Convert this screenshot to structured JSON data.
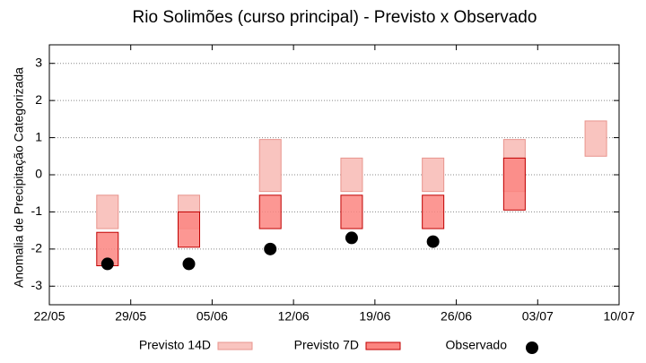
{
  "chart_data": {
    "type": "range",
    "title": "Rio Solimões (curso principal) - Previsto x Observado",
    "y_label": "Anomalia de Precipitação Categorizada",
    "x": [
      "27/05",
      "03/06",
      "10/06",
      "17/06",
      "24/06",
      "01/07",
      "08/07"
    ],
    "xlim": [
      "22/05",
      "10/07"
    ],
    "xticks": [
      "22/05",
      "29/05",
      "05/06",
      "12/06",
      "19/06",
      "26/06",
      "03/07",
      "10/07"
    ],
    "ylim": [
      -3.5,
      3.5
    ],
    "yticks": [
      -3,
      -2,
      -1,
      0,
      1,
      2,
      3
    ],
    "grid": true,
    "legend": "bottom",
    "series": [
      {
        "name": "Previsto 14D",
        "type": "range",
        "color": "#f9c4bf",
        "stroke": "#e8948d",
        "low": [
          -1.45,
          -1.45,
          -0.45,
          -0.45,
          -0.45,
          -0.45,
          0.5
        ],
        "high": [
          -0.55,
          -0.55,
          0.95,
          0.45,
          0.45,
          0.95,
          1.45
        ]
      },
      {
        "name": "Previsto 7D",
        "type": "range",
        "color": "#fb8580",
        "stroke": "#c00000",
        "low": [
          -2.45,
          -1.95,
          -1.45,
          -1.45,
          -1.45,
          -0.95,
          null
        ],
        "high": [
          -1.55,
          -1.0,
          -0.55,
          -0.55,
          -0.55,
          0.45,
          null
        ]
      },
      {
        "name": "Observado",
        "type": "scatter",
        "color": "#000000",
        "values": [
          -2.4,
          -2.4,
          -2.0,
          -1.7,
          -1.8,
          null,
          null
        ]
      }
    ]
  }
}
